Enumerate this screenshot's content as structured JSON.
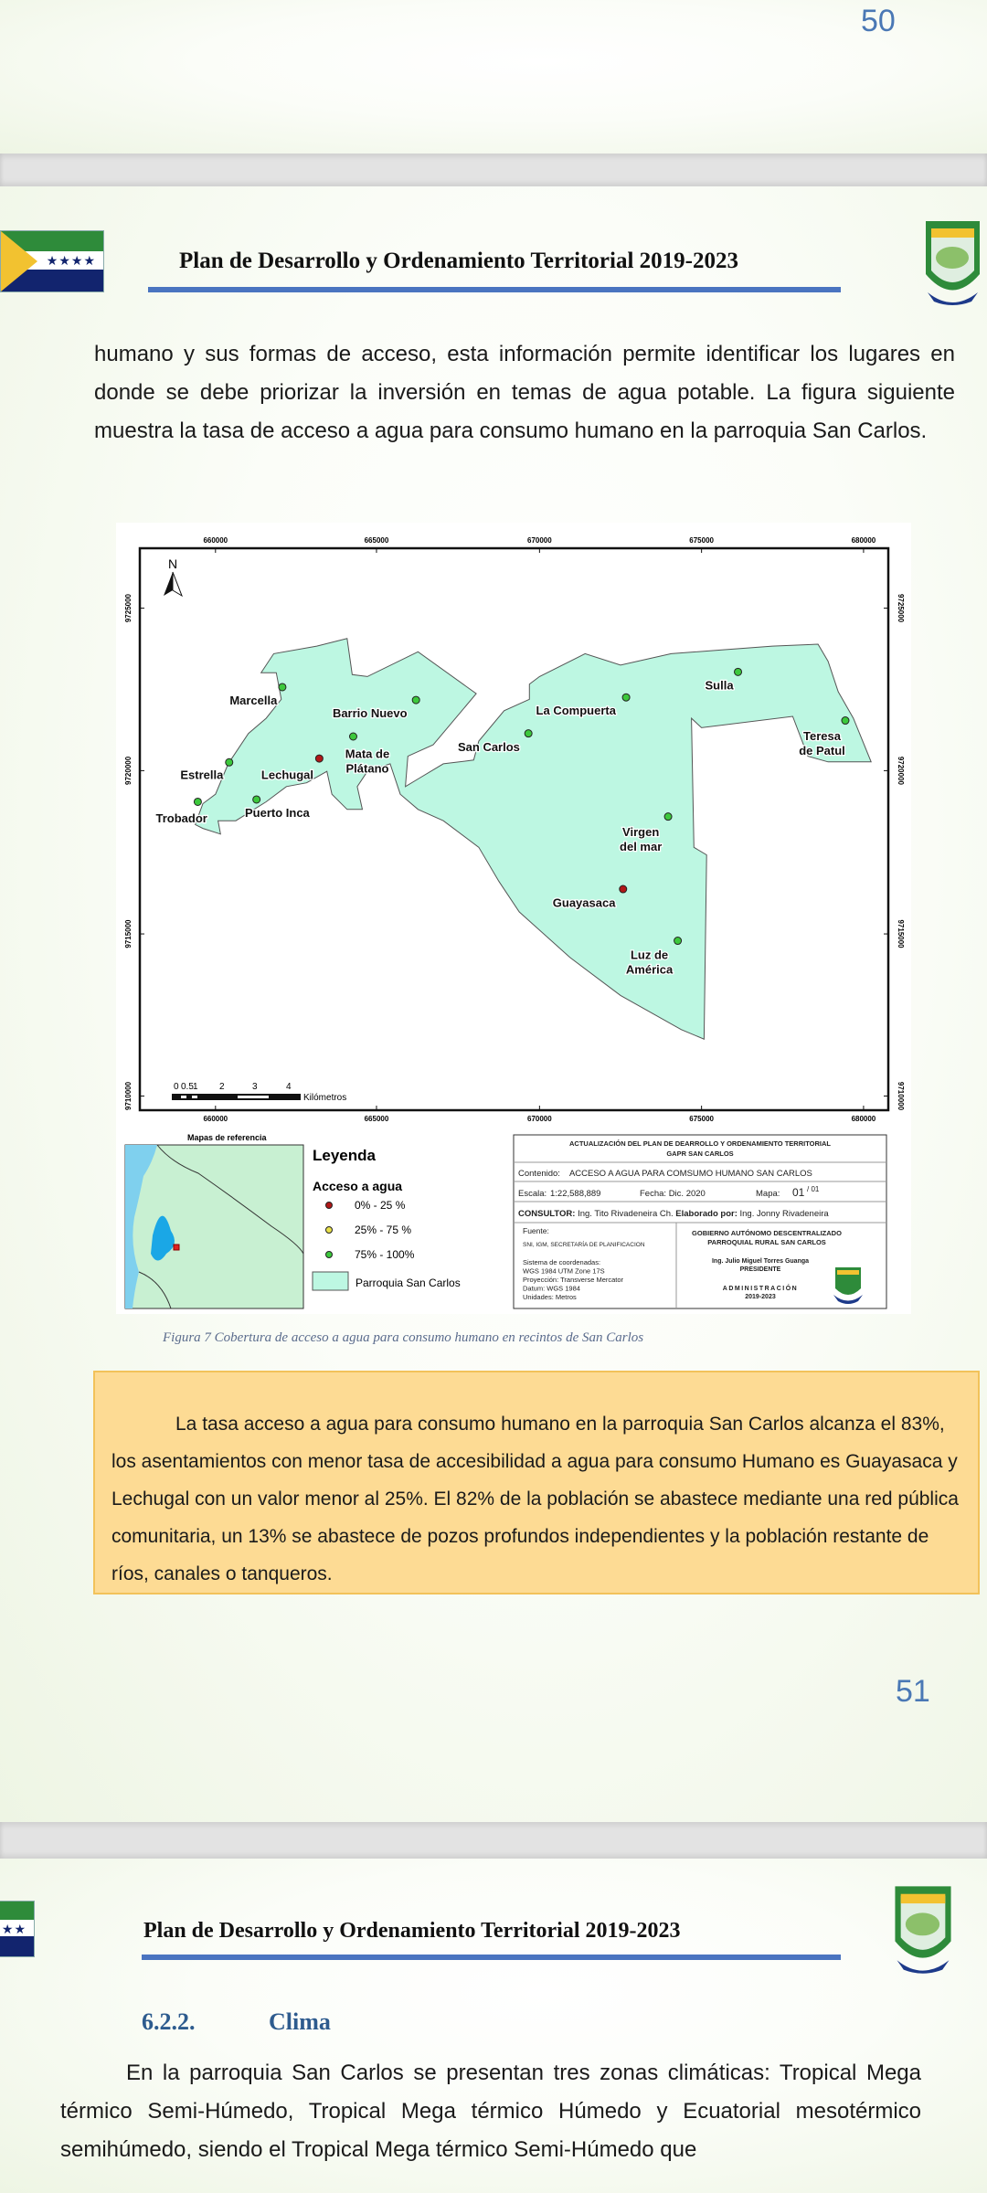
{
  "page_top": {
    "page_number": "50"
  },
  "header": {
    "title": "Plan de Desarrollo y Ordenamiento Territorial 2019-2023",
    "flag_stars": "★★★★"
  },
  "page_51": {
    "intro_paragraph": "humano y sus formas de acceso, esta información permite identificar los lugares en donde se debe priorizar la inversión en temas de agua potable. La figura siguiente muestra la tasa de acceso a agua para consumo humano en la parroquia San Carlos.",
    "figure_caption": "Figura 7 Cobertura de acceso a agua para consumo humano en recintos de San Carlos",
    "highlight_box": "La tasa acceso a agua para consumo humano en la parroquia San Carlos alcanza el 83%, los asentamientos con menor tasa de accesibilidad a agua para consumo Humano es Guayasaca y Lechugal con un valor menor al 25%. El 82% de la población se abastece mediante una red pública comunitaria, un 13% se abastece de pozos profundos independientes y la población restante de ríos, canales o tanqueros.",
    "page_number": "51"
  },
  "map": {
    "north_label": "N",
    "x_ticks": [
      "660000",
      "665000",
      "670000",
      "675000",
      "680000"
    ],
    "y_ticks": [
      "9725000",
      "9720000",
      "9715000",
      "9710000"
    ],
    "scale_bar": {
      "labels": [
        "0",
        "0.5",
        "1",
        "2",
        "3",
        "4"
      ],
      "unit": "Kilómetros"
    },
    "colors": {
      "parish_fill": "#bdf7e2",
      "low": "#b01818",
      "mid": "#e8e04a",
      "high": "#3cc83c",
      "sea": "#7fd0ee",
      "land": "#c8f0d2"
    },
    "settlements": [
      {
        "name": "Marcella",
        "access": "high"
      },
      {
        "name": "Barrio Nuevo",
        "access": "high"
      },
      {
        "name": "Mata de Plátano",
        "access": "high"
      },
      {
        "name": "Lechugal",
        "access": "low"
      },
      {
        "name": "Estrella",
        "access": "high"
      },
      {
        "name": "Trobador",
        "access": "high"
      },
      {
        "name": "Puerto Inca",
        "access": "high"
      },
      {
        "name": "San Carlos",
        "access": "high"
      },
      {
        "name": "La Compuerta",
        "access": "high"
      },
      {
        "name": "Sulla",
        "access": "high"
      },
      {
        "name": "Teresa de Patul",
        "access": "high"
      },
      {
        "name": "Virgen del mar",
        "access": "high"
      },
      {
        "name": "Guayasaca",
        "access": "low"
      },
      {
        "name": "Luz de América",
        "access": "high"
      }
    ],
    "reference_title": "Mapas de referencia",
    "legend": {
      "title": "Leyenda",
      "subtitle": "Acceso a agua",
      "items": [
        {
          "label": "0% - 25 %",
          "access": "low"
        },
        {
          "label": "25% - 75 %",
          "access": "mid"
        },
        {
          "label": "75% - 100%",
          "access": "high"
        }
      ],
      "area_label": "Parroquia San Carlos"
    },
    "title_block": {
      "heading": "ACTUALIZACIÓN DEL PLAN DE DEARROLLO Y ORDENAMIENTO TERRITORIAL",
      "heading2": "GAPR SAN CARLOS",
      "content_label": "Contenido:",
      "content": "ACCESO A AGUA PARA COMSUMO HUMANO SAN CARLOS",
      "scale_label": "Escala:",
      "scale": "1:22,588,889",
      "date_label": "Fecha:",
      "date": "Dic. 2020",
      "map_label": "Mapa:",
      "map_num": "01",
      "map_total": "/ 01",
      "consultant_label": "CONSULTOR:",
      "consultant": "Ing. Tito Rivadeneira Ch.",
      "author_label": "Elaborado por:",
      "author": "Ing. Jonny Rivadeneira",
      "source_label": "Fuente:",
      "source": "SNI, IGM, SECRETARÍA DE PLANIFICACION",
      "crs_lines": [
        "Sistema de coordenadas:",
        "WGS 1984 UTM Zone 17S",
        "Proyección: Transverse Mercator",
        "Datum: WGS 1984",
        "Unidades: Metros"
      ],
      "gov_line1": "GOBIERNO AUTÓNOMO DESCENTRALIZADO",
      "gov_line2": "PARROQUIAL  RURAL SAN CARLOS",
      "president": "Ing. Julio Miguel Torres Guanga",
      "president_title": "PRESIDENTE",
      "admin": "ADMINISTRACIÓN",
      "admin_years": "2019-2023"
    }
  },
  "page_52": {
    "section_number": "6.2.2.",
    "section_title": "Clima",
    "paragraph": "En la parroquia San Carlos se presentan  tres zonas climáticas: Tropical Mega térmico Semi-Húmedo, Tropical Mega térmico Húmedo y Ecuatorial mesotérmico semihúmedo, siendo el Tropical Mega térmico Semi-Húmedo que"
  }
}
